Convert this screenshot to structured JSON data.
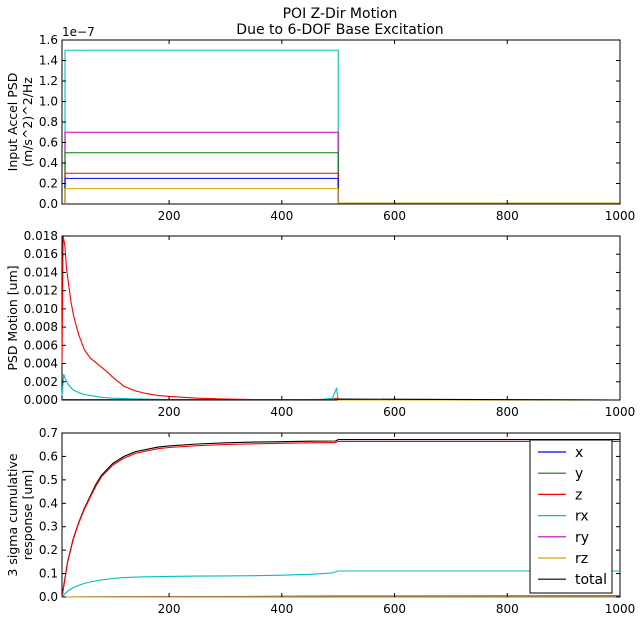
{
  "title_line1": "POI Z-Dir Motion",
  "title_line2": "Due to 6-DOF Base Excitation",
  "colors": {
    "x": "#0000ff",
    "y": "#008000",
    "z": "#ff0000",
    "rx": "#00bfbf",
    "ry": "#bf00bf",
    "rz": "#d4a800",
    "total": "#000000"
  },
  "chart_data": [
    {
      "type": "line",
      "ylabel_line1": "Input Accel PSD",
      "ylabel_line2": "(m/s^2)^2/Hz",
      "exponent_label": "1e−7",
      "xlim": [
        10,
        1000
      ],
      "ylim": [
        0,
        1.6
      ],
      "y_scale": 1e-07,
      "xticks": [
        200,
        400,
        600,
        800,
        1000
      ],
      "xtick_labels": [
        "200",
        "400",
        "600",
        "800",
        "1000"
      ],
      "yticks": [
        0,
        0.2,
        0.4,
        0.6,
        0.8,
        1.0,
        1.2,
        1.4,
        1.6
      ],
      "ytick_labels": [
        "0.0",
        "0.2",
        "0.4",
        "0.6",
        "0.8",
        "1.0",
        "1.2",
        "1.4",
        "1.6"
      ],
      "series": [
        {
          "name": "rx",
          "level": 1.5,
          "cutoff": 500
        },
        {
          "name": "ry",
          "level": 0.7,
          "cutoff": 500
        },
        {
          "name": "y",
          "level": 0.5,
          "cutoff": 500
        },
        {
          "name": "z",
          "level": 0.3,
          "cutoff": 500
        },
        {
          "name": "x",
          "level": 0.25,
          "cutoff": 500
        },
        {
          "name": "rz",
          "level": 0.15,
          "cutoff": 500
        }
      ]
    },
    {
      "type": "line",
      "ylabel": "PSD Motion [um]",
      "xlim": [
        10,
        1000
      ],
      "ylim": [
        0,
        0.018
      ],
      "xticks": [
        200,
        400,
        600,
        800,
        1000
      ],
      "xtick_labels": [
        "200",
        "400",
        "600",
        "800",
        "1000"
      ],
      "yticks": [
        0,
        0.002,
        0.004,
        0.006,
        0.008,
        0.01,
        0.012,
        0.014,
        0.016,
        0.018
      ],
      "ytick_labels": [
        "0.000",
        "0.002",
        "0.004",
        "0.006",
        "0.008",
        "0.010",
        "0.012",
        "0.014",
        "0.016",
        "0.018"
      ],
      "series": [
        {
          "name": "z",
          "x": [
            10,
            12,
            15,
            18,
            22,
            26,
            30,
            35,
            40,
            50,
            60,
            70,
            80,
            90,
            100,
            120,
            140,
            160,
            180,
            200,
            250,
            300,
            350,
            400,
            450,
            490,
            497,
            500,
            1000
          ],
          "y": [
            0.004,
            0.0185,
            0.017,
            0.0145,
            0.0125,
            0.0108,
            0.0094,
            0.0082,
            0.0071,
            0.0055,
            0.0046,
            0.0041,
            0.0036,
            0.0031,
            0.0025,
            0.0015,
            0.001,
            0.0007,
            0.0005,
            0.0004,
            0.0002,
            0.0001,
            6e-05,
            4e-05,
            4e-05,
            8e-05,
            0.0002,
            0.0,
            0.0
          ]
        },
        {
          "name": "rx",
          "x": [
            10,
            13,
            16,
            20,
            25,
            30,
            40,
            50,
            60,
            80,
            100,
            150,
            200,
            300,
            400,
            470,
            490,
            497,
            500,
            1000
          ],
          "y": [
            0.0005,
            0.0028,
            0.0023,
            0.0018,
            0.0014,
            0.0011,
            0.0008,
            0.0006,
            0.0005,
            0.0003,
            0.0002,
            0.0001,
            5e-05,
            2e-05,
            2e-05,
            5e-05,
            0.0002,
            0.0013,
            0.0,
            0.0
          ]
        },
        {
          "name": "ry",
          "x": [
            10,
            500,
            1000
          ],
          "y": [
            3e-05,
            2e-05,
            0.0
          ]
        },
        {
          "name": "y",
          "x": [
            10,
            500,
            1000
          ],
          "y": [
            2e-05,
            2e-05,
            0.0
          ]
        },
        {
          "name": "x",
          "x": [
            10,
            500,
            1000
          ],
          "y": [
            1e-05,
            1e-05,
            0.0
          ]
        },
        {
          "name": "rz",
          "x": [
            10,
            500,
            1000
          ],
          "y": [
            1e-05,
            1e-05,
            0.0
          ]
        },
        {
          "name": "total",
          "x": [
            10,
            498,
            500,
            1000
          ],
          "y": [
            0.0,
            0.0,
            0.0001,
            0.0
          ]
        }
      ]
    },
    {
      "type": "line",
      "ylabel_line1": "3 sigma cumulative",
      "ylabel_line2": "response [um]",
      "xlim": [
        10,
        1000
      ],
      "ylim": [
        0,
        0.7
      ],
      "xticks": [
        200,
        400,
        600,
        800,
        1000
      ],
      "xtick_labels": [
        "200",
        "400",
        "600",
        "800",
        "1000"
      ],
      "yticks": [
        0,
        0.1,
        0.2,
        0.3,
        0.4,
        0.5,
        0.6,
        0.7
      ],
      "ytick_labels": [
        "0.0",
        "0.1",
        "0.2",
        "0.3",
        "0.4",
        "0.5",
        "0.6",
        "0.7"
      ],
      "legend_position": "right",
      "legend": [
        "x",
        "y",
        "z",
        "rx",
        "ry",
        "rz",
        "total"
      ],
      "series": [
        {
          "name": "total",
          "x": [
            10,
            20,
            30,
            40,
            50,
            60,
            70,
            80,
            100,
            120,
            140,
            160,
            180,
            200,
            250,
            300,
            350,
            400,
            450,
            495,
            500,
            600,
            700,
            800,
            900,
            1000
          ],
          "y": [
            0.0,
            0.15,
            0.25,
            0.32,
            0.38,
            0.43,
            0.48,
            0.52,
            0.57,
            0.6,
            0.62,
            0.63,
            0.64,
            0.645,
            0.653,
            0.658,
            0.661,
            0.663,
            0.665,
            0.666,
            0.672,
            0.672,
            0.672,
            0.672,
            0.672,
            0.672
          ]
        },
        {
          "name": "z",
          "x": [
            10,
            20,
            30,
            40,
            50,
            60,
            70,
            80,
            100,
            120,
            140,
            160,
            180,
            200,
            250,
            300,
            350,
            400,
            450,
            495,
            500,
            600,
            700,
            800,
            900,
            1000
          ],
          "y": [
            0.0,
            0.148,
            0.247,
            0.317,
            0.375,
            0.425,
            0.473,
            0.513,
            0.563,
            0.593,
            0.613,
            0.623,
            0.633,
            0.638,
            0.646,
            0.651,
            0.654,
            0.656,
            0.658,
            0.659,
            0.664,
            0.664,
            0.664,
            0.664,
            0.664,
            0.664
          ]
        },
        {
          "name": "rx",
          "x": [
            10,
            20,
            30,
            40,
            50,
            60,
            80,
            100,
            120,
            150,
            200,
            250,
            300,
            350,
            400,
            450,
            490,
            500,
            600,
            700,
            800,
            900,
            1000
          ],
          "y": [
            0.0,
            0.025,
            0.04,
            0.05,
            0.058,
            0.064,
            0.073,
            0.079,
            0.083,
            0.086,
            0.088,
            0.089,
            0.09,
            0.091,
            0.093,
            0.097,
            0.103,
            0.111,
            0.111,
            0.111,
            0.111,
            0.111,
            0.111
          ]
        },
        {
          "name": "y",
          "x": [
            10,
            500,
            1000
          ],
          "y": [
            0.0,
            0.004,
            0.005
          ]
        },
        {
          "name": "ry",
          "x": [
            10,
            500,
            1000
          ],
          "y": [
            0.0,
            0.003,
            0.004
          ]
        },
        {
          "name": "x",
          "x": [
            10,
            500,
            1000
          ],
          "y": [
            0.0,
            0.002,
            0.002
          ]
        },
        {
          "name": "rz",
          "x": [
            10,
            500,
            1000
          ],
          "y": [
            0.0,
            0.001,
            0.001
          ]
        }
      ]
    }
  ]
}
